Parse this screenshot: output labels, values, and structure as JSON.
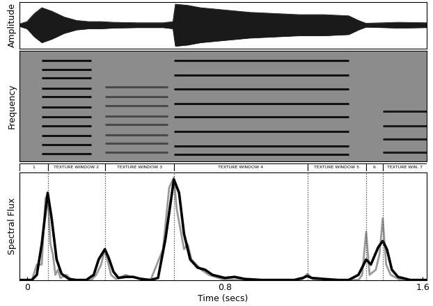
{
  "chart_data": [
    {
      "type": "area",
      "ylabel": "Amplitude",
      "tick_labels": false,
      "color": "#1a1a1a",
      "xlim": [
        -0.03,
        1.615
      ],
      "ylim": [
        -1,
        1
      ],
      "x": [
        -0.03,
        0.0,
        0.03,
        0.06,
        0.1,
        0.15,
        0.2,
        0.25,
        0.3,
        0.35,
        0.45,
        0.55,
        0.59,
        0.6,
        0.65,
        0.7,
        0.8,
        0.9,
        1.0,
        1.1,
        1.2,
        1.3,
        1.34,
        1.37,
        1.44,
        1.5,
        1.615
      ],
      "values": [
        0.05,
        0.15,
        0.5,
        0.75,
        0.6,
        0.35,
        0.2,
        0.15,
        0.15,
        0.12,
        0.1,
        0.1,
        0.15,
        0.9,
        0.85,
        0.75,
        0.65,
        0.55,
        0.5,
        0.45,
        0.45,
        0.4,
        0.2,
        0.08,
        0.1,
        0.12,
        0.1
      ]
    },
    {
      "type": "spectrogram",
      "ylabel": "Frequency",
      "tick_labels": false,
      "xlim": [
        -0.03,
        1.615
      ],
      "ylim": [
        0,
        1
      ],
      "segments": [
        {
          "start": 0.06,
          "end": 0.26,
          "color": "#111111",
          "harmonics": [
            0.07,
            0.15,
            0.23,
            0.32,
            0.4,
            0.49,
            0.58,
            0.66,
            0.75,
            0.83,
            0.91
          ]
        },
        {
          "start": 0.315,
          "end": 0.57,
          "color": "#4a4a4a",
          "harmonics": [
            0.08,
            0.16,
            0.24,
            0.33,
            0.41,
            0.5,
            0.58,
            0.67
          ]
        },
        {
          "start": 0.594,
          "end": 1.3,
          "color": "#111111",
          "harmonics": [
            0.06,
            0.14,
            0.27,
            0.4,
            0.52,
            0.65,
            0.78,
            0.91
          ]
        },
        {
          "start": 1.44,
          "end": 1.615,
          "color": "#1a1a1a",
          "harmonics": [
            0.08,
            0.2,
            0.32,
            0.45
          ]
        }
      ]
    },
    {
      "type": "line",
      "xlabel": "Time (secs)",
      "ylabel": "Spectral Flux",
      "tick_labels": "x",
      "xlim": [
        -0.03,
        1.615
      ],
      "ylim": [
        0,
        1.05
      ],
      "xticks": [
        0,
        0.8,
        {
          "value": 1.6,
          "label": "1.6"
        }
      ],
      "onsets": [
        0.084,
        0.315,
        0.594,
        1.134,
        1.371,
        1.438
      ],
      "series": [
        {
          "color": "#999999",
          "x": [
            -0.03,
            0.02,
            0.04,
            0.06,
            0.075,
            0.084,
            0.095,
            0.105,
            0.115,
            0.125,
            0.135,
            0.16,
            0.18,
            0.26,
            0.28,
            0.3,
            0.315,
            0.325,
            0.34,
            0.36,
            0.4,
            0.42,
            0.5,
            0.55,
            0.575,
            0.594,
            0.605,
            0.62,
            0.635,
            0.65,
            0.665,
            0.685,
            0.705,
            0.735,
            0.8,
            1.11,
            1.134,
            1.16,
            1.34,
            1.355,
            1.371,
            1.385,
            1.41,
            1.425,
            1.438,
            1.452,
            1.47,
            1.51,
            1.615
          ],
          "values": [
            0.0,
            0.0,
            0.15,
            0.15,
            0.8,
            0.83,
            0.35,
            0.25,
            0.05,
            0.1,
            0.02,
            0.05,
            0.0,
            0.0,
            0.05,
            0.15,
            0.3,
            0.2,
            0.05,
            0.01,
            0.05,
            0.03,
            0.0,
            0.3,
            0.9,
            1.0,
            0.7,
            0.5,
            0.3,
            0.35,
            0.2,
            0.15,
            0.1,
            0.05,
            0.0,
            0.0,
            0.06,
            0.0,
            0.0,
            0.05,
            0.47,
            0.05,
            0.1,
            0.25,
            0.6,
            0.15,
            0.05,
            0.0,
            0.0
          ]
        },
        {
          "color": "#000000",
          "x": [
            -0.03,
            0.02,
            0.04,
            0.06,
            0.084,
            0.1,
            0.12,
            0.14,
            0.17,
            0.2,
            0.24,
            0.27,
            0.29,
            0.315,
            0.33,
            0.35,
            0.37,
            0.4,
            0.43,
            0.46,
            0.5,
            0.53,
            0.56,
            0.594,
            0.615,
            0.635,
            0.66,
            0.69,
            0.72,
            0.75,
            0.8,
            0.84,
            0.88,
            0.95,
            1.0,
            1.08,
            1.115,
            1.134,
            1.15,
            1.2,
            1.26,
            1.3,
            1.34,
            1.371,
            1.39,
            1.42,
            1.438,
            1.455,
            1.475,
            1.5,
            1.55,
            1.615
          ],
          "values": [
            0.0,
            0.0,
            0.05,
            0.35,
            0.85,
            0.6,
            0.2,
            0.06,
            0.01,
            0.0,
            0.0,
            0.05,
            0.2,
            0.3,
            0.22,
            0.08,
            0.02,
            0.03,
            0.03,
            0.01,
            0.0,
            0.02,
            0.4,
            0.98,
            0.85,
            0.45,
            0.2,
            0.12,
            0.1,
            0.05,
            0.02,
            0.03,
            0.01,
            0.0,
            0.0,
            0.0,
            0.02,
            0.04,
            0.02,
            0.01,
            0.0,
            0.0,
            0.05,
            0.2,
            0.15,
            0.32,
            0.38,
            0.3,
            0.1,
            0.03,
            0.0,
            0.0
          ]
        }
      ]
    }
  ],
  "texture_windows": [
    {
      "label": "1",
      "start": -0.03,
      "end": 0.084
    },
    {
      "label": "TEXTURE WINDOW 2",
      "start": 0.084,
      "end": 0.315
    },
    {
      "label": "TEXTURE WINDOW 3",
      "start": 0.315,
      "end": 0.594
    },
    {
      "label": "TEXTURE WINDOW 4",
      "start": 0.594,
      "end": 1.134
    },
    {
      "label": "TEXTURE WINDOW 5",
      "start": 1.134,
      "end": 1.371
    },
    {
      "label": "6",
      "start": 1.371,
      "end": 1.438
    },
    {
      "label": "TEXTURE WIN. 7",
      "start": 1.438,
      "end": 1.615
    }
  ]
}
